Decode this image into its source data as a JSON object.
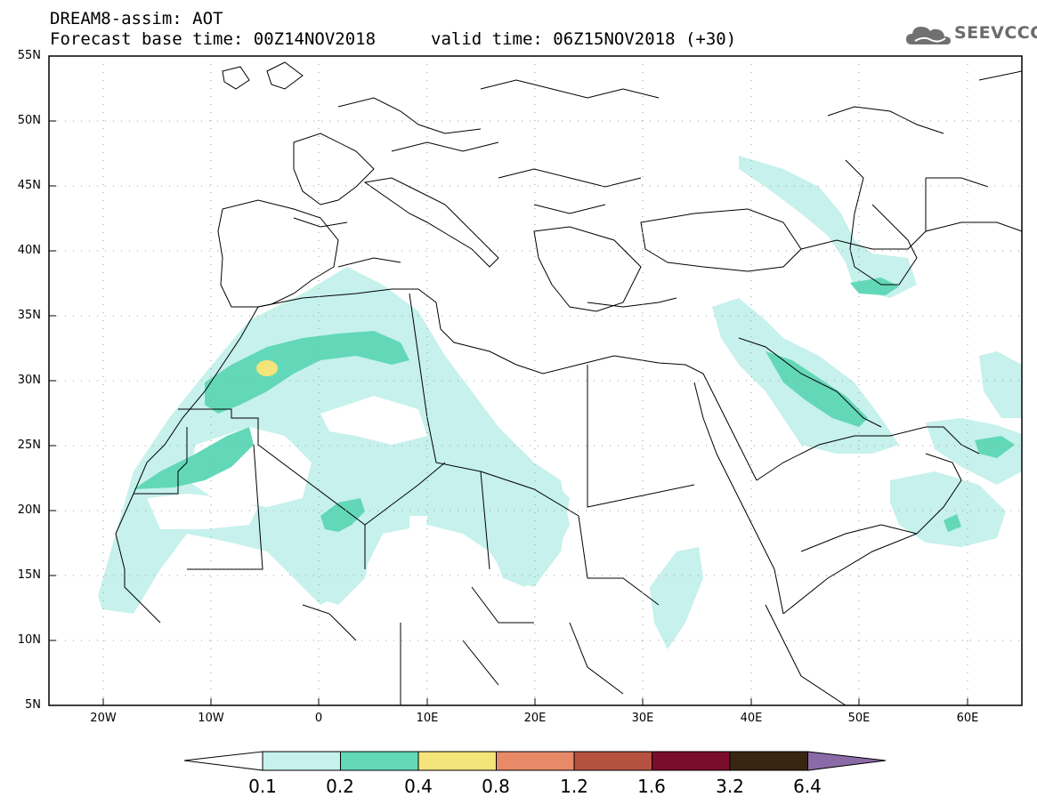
{
  "header": {
    "title": "DREAM8-assim: AOT",
    "base_time": "Forecast base time: 00Z14NOV2018",
    "valid_time": "valid time: 06Z15NOV2018 (+30)",
    "logo_text": "SEEVCCC"
  },
  "map": {
    "variable": "AOT",
    "lat_labels": [
      "55N",
      "50N",
      "45N",
      "40N",
      "35N",
      "30N",
      "25N",
      "20N",
      "15N",
      "10N",
      "5N"
    ],
    "lon_labels": [
      "20W",
      "10W",
      "0",
      "10E",
      "20E",
      "30E",
      "40E",
      "50E",
      "60E"
    ]
  },
  "colorbar": {
    "levels": [
      "0.1",
      "0.2",
      "0.4",
      "0.8",
      "1.2",
      "1.6",
      "3.2",
      "6.4"
    ],
    "colors": [
      "#ffffff",
      "#c6f1ec",
      "#63d8b8",
      "#f4e47a",
      "#e88a68",
      "#b5513f",
      "#7a0d2b",
      "#3a2512",
      "#8b6aa8"
    ]
  }
}
